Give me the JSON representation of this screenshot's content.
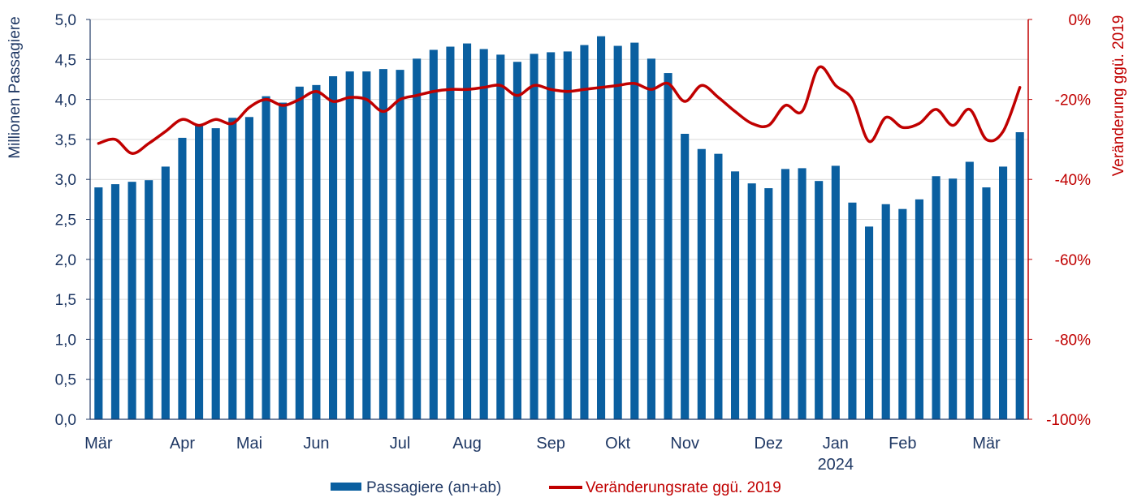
{
  "chart_data": {
    "type": "bar",
    "y_axis_left": {
      "label": "Millionen Passagiere",
      "range": [
        0,
        5
      ],
      "ticks": [
        "0,0",
        "0,5",
        "1,0",
        "1,5",
        "2,0",
        "2,5",
        "3,0",
        "3,5",
        "4,0",
        "4,5",
        "5,0"
      ]
    },
    "y_axis_right": {
      "label": "Veränderung ggü. 2019",
      "range": [
        -100,
        0
      ],
      "ticks": [
        "-100%",
        "-80%",
        "-60%",
        "-40%",
        "-20%",
        "0%"
      ]
    },
    "x_month_labels": [
      {
        "label": "Mär",
        "week": 0
      },
      {
        "label": "Apr",
        "week": 5
      },
      {
        "label": "Mai",
        "week": 9
      },
      {
        "label": "Jun",
        "week": 13
      },
      {
        "label": "Jul",
        "week": 18
      },
      {
        "label": "Aug",
        "week": 22
      },
      {
        "label": "Sep",
        "week": 27
      },
      {
        "label": "Okt",
        "week": 31
      },
      {
        "label": "Nov",
        "week": 35
      },
      {
        "label": "Dez",
        "week": 40
      },
      {
        "label": "Jan",
        "week": 44
      },
      {
        "label": "Feb",
        "week": 48
      },
      {
        "label": "Mär",
        "week": 53
      }
    ],
    "year_label": {
      "label": "2024",
      "week": 44
    },
    "series": [
      {
        "name": "Passagiere (an+ab)",
        "axis": "left",
        "color": "#0a5fa0",
        "values": [
          2.9,
          2.94,
          2.97,
          2.99,
          3.16,
          3.52,
          3.67,
          3.64,
          3.77,
          3.78,
          4.04,
          3.96,
          4.16,
          4.18,
          4.29,
          4.35,
          4.35,
          4.38,
          4.37,
          4.51,
          4.62,
          4.66,
          4.7,
          4.63,
          4.56,
          4.47,
          4.57,
          4.59,
          4.6,
          4.68,
          4.79,
          4.67,
          4.71,
          4.51,
          4.33,
          3.57,
          3.38,
          3.32,
          3.1,
          2.95,
          2.89,
          3.13,
          3.14,
          2.98,
          3.17,
          2.71,
          2.41,
          2.69,
          2.63,
          2.75,
          3.04,
          3.01,
          3.22,
          2.9,
          3.16,
          3.59
        ]
      },
      {
        "name": "Veränderungsrate ggü. 2019",
        "axis": "right",
        "color": "#c00000",
        "values": [
          -31,
          -30,
          -33.5,
          -31,
          -28,
          -25,
          -26.5,
          -25,
          -26,
          -22,
          -20,
          -21.5,
          -20,
          -18,
          -20.5,
          -19.5,
          -20,
          -23,
          -20,
          -19,
          -18,
          -17.5,
          -17.5,
          -17,
          -16.5,
          -19,
          -16.5,
          -17.5,
          -18,
          -17.5,
          -17,
          -16.5,
          -16,
          -17.5,
          -16,
          -20.5,
          -16.5,
          -19.5,
          -23,
          -26,
          -26.5,
          -21.5,
          -23,
          -12,
          -16.5,
          -20,
          -30.5,
          -24.5,
          -27,
          -26,
          -22.5,
          -26.5,
          -22.5,
          -30,
          -28,
          -17
        ]
      }
    ],
    "legend": {
      "placement": "bottom"
    },
    "grid": true
  }
}
